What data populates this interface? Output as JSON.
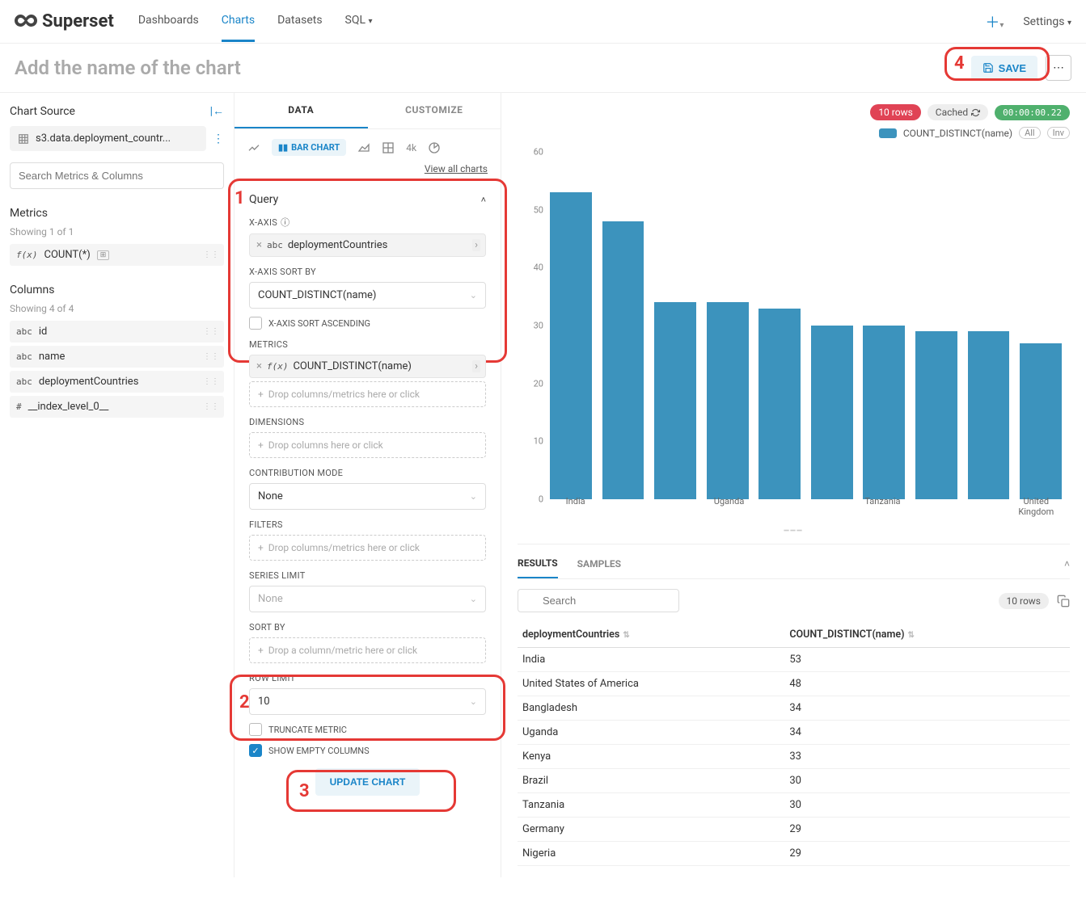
{
  "nav": {
    "brand": "Superset",
    "links": [
      "Dashboards",
      "Charts",
      "Datasets",
      "SQL"
    ],
    "active_index": 1,
    "settings": "Settings"
  },
  "header": {
    "title_placeholder": "Add the name of the chart",
    "save": "SAVE"
  },
  "annotations": [
    "1",
    "2",
    "3",
    "4"
  ],
  "source": {
    "label": "Chart Source",
    "dataset": "s3.data.deployment_countr...",
    "search_placeholder": "Search Metrics & Columns",
    "metrics_label": "Metrics",
    "metrics_meta": "Showing 1 of 1",
    "metrics": [
      {
        "type": "f(x)",
        "name": "COUNT(*)"
      }
    ],
    "columns_label": "Columns",
    "columns_meta": "Showing 4 of 4",
    "columns": [
      {
        "type": "abc",
        "name": "id"
      },
      {
        "type": "abc",
        "name": "name"
      },
      {
        "type": "abc",
        "name": "deploymentCountries"
      },
      {
        "type": "#",
        "name": "__index_level_0__"
      }
    ]
  },
  "tabs": {
    "data": "DATA",
    "customize": "CUSTOMIZE"
  },
  "viz": {
    "selected": "BAR CHART",
    "view_all": "View all charts"
  },
  "query": {
    "title": "Query",
    "xaxis_label": "X-AXIS",
    "xaxis_value": "deploymentCountries",
    "xaxis_type": "abc",
    "sortby_label": "X-AXIS SORT BY",
    "sortby_value": "COUNT_DISTINCT(name)",
    "sort_asc_label": "X-AXIS SORT ASCENDING",
    "metrics_label": "METRICS",
    "metrics_value": "COUNT_DISTINCT(name)",
    "metrics_type": "f(x)",
    "metrics_drop": "Drop columns/metrics here or click",
    "dimensions_label": "DIMENSIONS",
    "dimensions_drop": "Drop columns here or click",
    "contribution_label": "CONTRIBUTION MODE",
    "contribution_value": "None",
    "filters_label": "FILTERS",
    "filters_drop": "Drop columns/metrics here or click",
    "series_label": "SERIES LIMIT",
    "series_value": "None",
    "sort_label": "SORT BY",
    "sort_drop": "Drop a column/metric here or click",
    "rowlimit_label": "ROW LIMIT",
    "rowlimit_value": "10",
    "truncate_label": "TRUNCATE METRIC",
    "show_empty_label": "SHOW EMPTY COLUMNS",
    "update_btn": "UPDATE CHART"
  },
  "badges": {
    "rows": "10 rows",
    "cached": "Cached",
    "time": "00:00:00.22"
  },
  "legend": {
    "series": "COUNT_DISTINCT(name)",
    "all": "All",
    "inv": "Inv"
  },
  "chart": {
    "type": "bar",
    "ylim": [
      0,
      60
    ],
    "ytick_step": 10,
    "bar_color": "#3c93bd",
    "categories": [
      "India",
      "United States of America",
      "Bangladesh",
      "Uganda",
      "Kenya",
      "Brazil",
      "Tanzania",
      "Germany",
      "Nigeria",
      "United Kingdom"
    ],
    "visible_xlabels": {
      "0": "India",
      "3": "Uganda",
      "6": "Tanzania",
      "9": "United Kingdom"
    },
    "values": [
      53,
      48,
      34,
      34,
      33,
      30,
      30,
      29,
      29,
      27
    ]
  },
  "results": {
    "tab_results": "RESULTS",
    "tab_samples": "SAMPLES",
    "search_placeholder": "Search",
    "rows_pill": "10 rows",
    "col1": "deploymentCountries",
    "col2": "COUNT_DISTINCT(name)",
    "rows": [
      [
        "India",
        "53"
      ],
      [
        "United States of America",
        "48"
      ],
      [
        "Bangladesh",
        "34"
      ],
      [
        "Uganda",
        "34"
      ],
      [
        "Kenya",
        "33"
      ],
      [
        "Brazil",
        "30"
      ],
      [
        "Tanzania",
        "30"
      ],
      [
        "Germany",
        "29"
      ],
      [
        "Nigeria",
        "29"
      ]
    ]
  }
}
